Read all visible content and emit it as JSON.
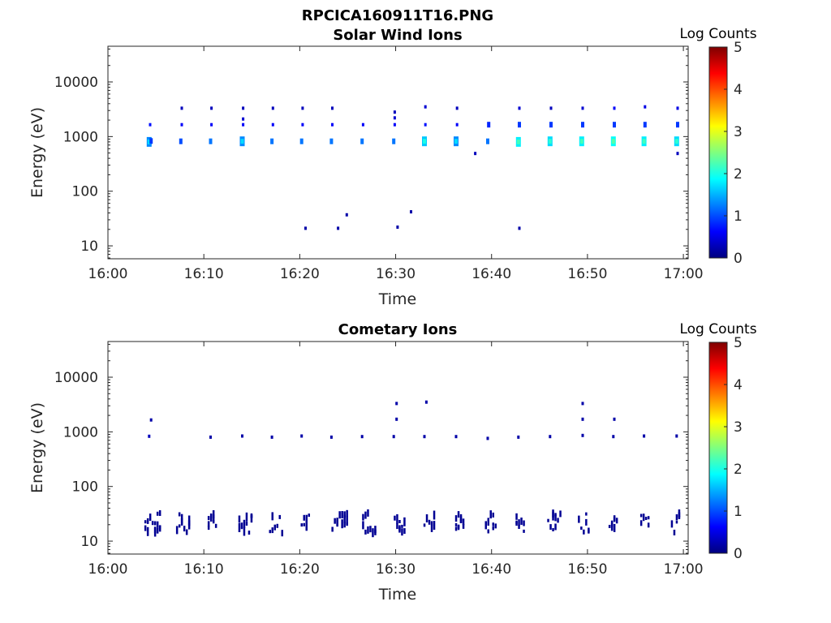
{
  "figure": {
    "title": "RPCICA160911T16.PNG"
  },
  "colormap": {
    "name": "jet",
    "stops": [
      "#00007f",
      "#0000ff",
      "#007fff",
      "#00ffff",
      "#7fff7f",
      "#ffff00",
      "#ff7f00",
      "#ff0000",
      "#7f0000"
    ]
  },
  "chart_data": [
    {
      "type": "heatmap",
      "title": "Solar Wind Ions",
      "xlabel": "Time",
      "ylabel": "Energy (eV)",
      "x_ticks": [
        "16:00",
        "16:10",
        "16:20",
        "16:30",
        "16:40",
        "16:50",
        "17:00"
      ],
      "xlim_minutes": [
        0,
        60.5
      ],
      "y_scale": "log",
      "ylim": [
        5.8,
        45000
      ],
      "y_ticks": [
        {
          "value": 10,
          "label": "10"
        },
        {
          "value": 100,
          "label": "100"
        },
        {
          "value": 1000,
          "label": "1000"
        },
        {
          "value": 10000,
          "label": "10000"
        }
      ],
      "colorbar": {
        "label": "Log Counts",
        "min": 0,
        "max": 5,
        "ticks": [
          "0",
          "1",
          "2",
          "3",
          "4",
          "5"
        ]
      },
      "points": [
        {
          "t": 4.3,
          "e": 800,
          "v": 1.3
        },
        {
          "t": 4.5,
          "e": 830,
          "v": 0.9
        },
        {
          "t": 4.4,
          "e": 1650,
          "v": 0.7
        },
        {
          "t": 7.6,
          "e": 820,
          "v": 1.0
        },
        {
          "t": 7.7,
          "e": 1650,
          "v": 0.6
        },
        {
          "t": 7.7,
          "e": 3300,
          "v": 0.3
        },
        {
          "t": 10.7,
          "e": 820,
          "v": 1.2
        },
        {
          "t": 10.8,
          "e": 1650,
          "v": 0.6
        },
        {
          "t": 10.8,
          "e": 3300,
          "v": 0.3
        },
        {
          "t": 14.0,
          "e": 820,
          "v": 1.3
        },
        {
          "t": 14.1,
          "e": 1650,
          "v": 0.6
        },
        {
          "t": 14.1,
          "e": 2100,
          "v": 0.4
        },
        {
          "t": 14.1,
          "e": 3300,
          "v": 0.3
        },
        {
          "t": 17.1,
          "e": 820,
          "v": 1.2
        },
        {
          "t": 17.2,
          "e": 1650,
          "v": 0.6
        },
        {
          "t": 17.2,
          "e": 3300,
          "v": 0.3
        },
        {
          "t": 20.2,
          "e": 820,
          "v": 1.2
        },
        {
          "t": 20.3,
          "e": 1650,
          "v": 0.6
        },
        {
          "t": 20.3,
          "e": 3300,
          "v": 0.3
        },
        {
          "t": 23.3,
          "e": 820,
          "v": 1.2
        },
        {
          "t": 23.4,
          "e": 1650,
          "v": 0.6
        },
        {
          "t": 23.4,
          "e": 3300,
          "v": 0.3
        },
        {
          "t": 26.5,
          "e": 820,
          "v": 1.2
        },
        {
          "t": 26.6,
          "e": 1650,
          "v": 0.6
        },
        {
          "t": 29.8,
          "e": 820,
          "v": 1.2
        },
        {
          "t": 29.9,
          "e": 1650,
          "v": 0.6
        },
        {
          "t": 29.9,
          "e": 2200,
          "v": 0.4
        },
        {
          "t": 29.9,
          "e": 2800,
          "v": 0.3
        },
        {
          "t": 33.0,
          "e": 820,
          "v": 1.6
        },
        {
          "t": 33.1,
          "e": 1650,
          "v": 0.7
        },
        {
          "t": 33.1,
          "e": 3500,
          "v": 0.4
        },
        {
          "t": 36.3,
          "e": 820,
          "v": 1.3
        },
        {
          "t": 36.4,
          "e": 1650,
          "v": 0.6
        },
        {
          "t": 36.4,
          "e": 3300,
          "v": 0.3
        },
        {
          "t": 38.3,
          "e": 490,
          "v": 0.3
        },
        {
          "t": 39.6,
          "e": 820,
          "v": 1.2
        },
        {
          "t": 39.7,
          "e": 1650,
          "v": 0.8
        },
        {
          "t": 42.8,
          "e": 800,
          "v": 1.8
        },
        {
          "t": 42.9,
          "e": 1650,
          "v": 0.9
        },
        {
          "t": 42.9,
          "e": 3300,
          "v": 0.4
        },
        {
          "t": 46.1,
          "e": 820,
          "v": 1.7
        },
        {
          "t": 46.2,
          "e": 1650,
          "v": 0.9
        },
        {
          "t": 46.2,
          "e": 3300,
          "v": 0.3
        },
        {
          "t": 49.4,
          "e": 820,
          "v": 1.8
        },
        {
          "t": 49.5,
          "e": 1650,
          "v": 0.9
        },
        {
          "t": 49.5,
          "e": 3300,
          "v": 0.4
        },
        {
          "t": 52.7,
          "e": 820,
          "v": 1.9
        },
        {
          "t": 52.8,
          "e": 1650,
          "v": 0.9
        },
        {
          "t": 52.8,
          "e": 3300,
          "v": 0.6
        },
        {
          "t": 55.9,
          "e": 820,
          "v": 1.8
        },
        {
          "t": 56.0,
          "e": 1650,
          "v": 0.9
        },
        {
          "t": 56.0,
          "e": 3500,
          "v": 0.5
        },
        {
          "t": 59.3,
          "e": 820,
          "v": 1.7
        },
        {
          "t": 59.4,
          "e": 1650,
          "v": 0.9
        },
        {
          "t": 59.4,
          "e": 3300,
          "v": 0.5
        },
        {
          "t": 59.4,
          "e": 490,
          "v": 0.3
        },
        {
          "t": 20.6,
          "e": 21,
          "v": 0.2
        },
        {
          "t": 24.0,
          "e": 21,
          "v": 0.2
        },
        {
          "t": 24.9,
          "e": 37,
          "v": 0.2
        },
        {
          "t": 30.2,
          "e": 22,
          "v": 0.2
        },
        {
          "t": 31.6,
          "e": 42,
          "v": 0.2
        },
        {
          "t": 42.9,
          "e": 21,
          "v": 0.2
        }
      ]
    },
    {
      "type": "heatmap",
      "title": "Cometary Ions",
      "xlabel": "Time",
      "ylabel": "Energy (eV)",
      "x_ticks": [
        "16:00",
        "16:10",
        "16:20",
        "16:30",
        "16:40",
        "16:50",
        "17:00"
      ],
      "xlim_minutes": [
        0,
        60.5
      ],
      "y_scale": "log",
      "ylim": [
        5.8,
        45000
      ],
      "y_ticks": [
        {
          "value": 10,
          "label": "10"
        },
        {
          "value": 100,
          "label": "100"
        },
        {
          "value": 1000,
          "label": "1000"
        },
        {
          "value": 10000,
          "label": "10000"
        }
      ],
      "colorbar": {
        "label": "Log Counts",
        "min": 0,
        "max": 5,
        "ticks": [
          "0",
          "1",
          "2",
          "3",
          "4",
          "5"
        ]
      },
      "points": [
        {
          "t": 4.3,
          "e": 830,
          "v": 0.3
        },
        {
          "t": 4.5,
          "e": 1650,
          "v": 0.2
        },
        {
          "t": 10.7,
          "e": 800,
          "v": 0.2
        },
        {
          "t": 14.0,
          "e": 840,
          "v": 0.2
        },
        {
          "t": 17.1,
          "e": 800,
          "v": 0.2
        },
        {
          "t": 20.2,
          "e": 840,
          "v": 0.2
        },
        {
          "t": 23.3,
          "e": 800,
          "v": 0.2
        },
        {
          "t": 26.5,
          "e": 820,
          "v": 0.2
        },
        {
          "t": 29.8,
          "e": 820,
          "v": 0.2
        },
        {
          "t": 30.1,
          "e": 1700,
          "v": 0.2
        },
        {
          "t": 30.1,
          "e": 3300,
          "v": 0.2
        },
        {
          "t": 33.0,
          "e": 820,
          "v": 0.2
        },
        {
          "t": 33.2,
          "e": 3500,
          "v": 0.2
        },
        {
          "t": 36.3,
          "e": 820,
          "v": 0.2
        },
        {
          "t": 39.6,
          "e": 760,
          "v": 0.2
        },
        {
          "t": 42.8,
          "e": 800,
          "v": 0.2
        },
        {
          "t": 46.1,
          "e": 820,
          "v": 0.2
        },
        {
          "t": 49.5,
          "e": 860,
          "v": 0.2
        },
        {
          "t": 49.5,
          "e": 1700,
          "v": 0.2
        },
        {
          "t": 49.5,
          "e": 3300,
          "v": 0.2
        },
        {
          "t": 52.7,
          "e": 820,
          "v": 0.2
        },
        {
          "t": 52.8,
          "e": 1700,
          "v": 0.2
        },
        {
          "t": 55.9,
          "e": 840,
          "v": 0.2
        },
        {
          "t": 59.3,
          "e": 840,
          "v": 0.2
        }
      ],
      "clusters": [
        {
          "t0": 3.8,
          "t1": 5.4
        },
        {
          "t0": 7.1,
          "t1": 8.6
        },
        {
          "t0": 10.4,
          "t1": 11.4
        },
        {
          "t0": 13.6,
          "t1": 15.0
        },
        {
          "t0": 16.8,
          "t1": 18.3
        },
        {
          "t0": 20.1,
          "t1": 20.9
        },
        {
          "t0": 23.3,
          "t1": 24.9
        },
        {
          "t0": 26.5,
          "t1": 27.9
        },
        {
          "t0": 29.8,
          "t1": 30.9
        },
        {
          "t0": 32.9,
          "t1": 34.0
        },
        {
          "t0": 36.2,
          "t1": 37.1
        },
        {
          "t0": 39.3,
          "t1": 40.4
        },
        {
          "t0": 42.5,
          "t1": 43.5
        },
        {
          "t0": 45.8,
          "t1": 47.2
        },
        {
          "t0": 49.0,
          "t1": 50.2
        },
        {
          "t0": 52.2,
          "t1": 53.2
        },
        {
          "t0": 55.5,
          "t1": 56.5
        },
        {
          "t0": 58.7,
          "t1": 59.7
        }
      ],
      "cluster_energy_range": [
        14,
        33
      ],
      "cluster_value": 0.1
    }
  ]
}
